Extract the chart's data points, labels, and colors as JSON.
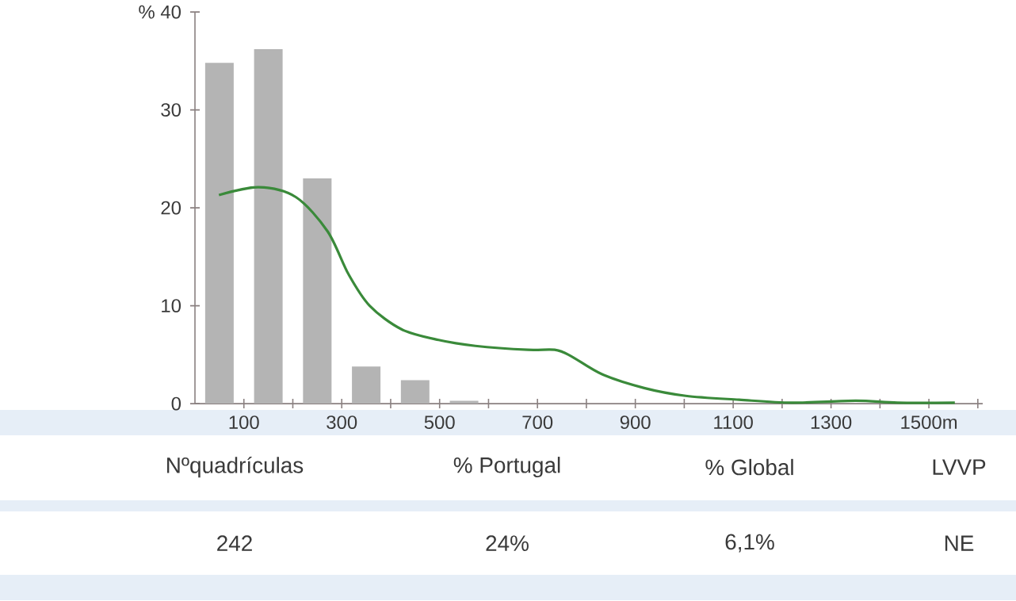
{
  "chart_data": {
    "type": "bar",
    "xlim": [
      0,
      1610
    ],
    "ylim": [
      0,
      40
    ],
    "xticks": [
      100,
      {
        "value": 200,
        "label": null
      },
      300,
      {
        "value": 400,
        "label": null
      },
      500,
      {
        "value": 600,
        "label": null
      },
      700,
      {
        "value": 800,
        "label": null
      },
      900,
      {
        "value": 1000,
        "label": null
      },
      1100,
      {
        "value": 1200,
        "label": null
      },
      1300,
      {
        "value": 1400,
        "label": null
      },
      {
        "value": 1500,
        "label": "1500m"
      },
      {
        "value": 1600,
        "label": null
      }
    ],
    "yticks": [
      0,
      10,
      20,
      30,
      {
        "value": 40,
        "label": "% 40"
      }
    ],
    "series": [
      {
        "color": "#b4b4b4",
        "x": [
          50,
          150,
          250,
          350,
          450,
          550
        ],
        "values": [
          34.8,
          36.2,
          23.0,
          3.8,
          2.4,
          0.3
        ]
      },
      {
        "type": "line",
        "color": "#3a8a3a",
        "x": [
          49,
          130,
          206,
          271,
          314,
          357,
          422,
          498,
          573,
          680,
          735,
          767,
          832,
          918,
          1003,
          1112,
          1220,
          1350,
          1436,
          1553
        ],
        "values": [
          21.3,
          22.1,
          21.1,
          17.6,
          13.2,
          10.0,
          7.6,
          6.5,
          5.9,
          5.5,
          5.5,
          4.9,
          3.0,
          1.6,
          0.8,
          0.4,
          0.1,
          0.3,
          0.1,
          0.1
        ]
      }
    ],
    "annotations": [
      "Nºquadrículas",
      "% Portugal",
      "% Global",
      "LVVP",
      "242",
      "24%",
      "6,1%",
      "NE"
    ]
  }
}
